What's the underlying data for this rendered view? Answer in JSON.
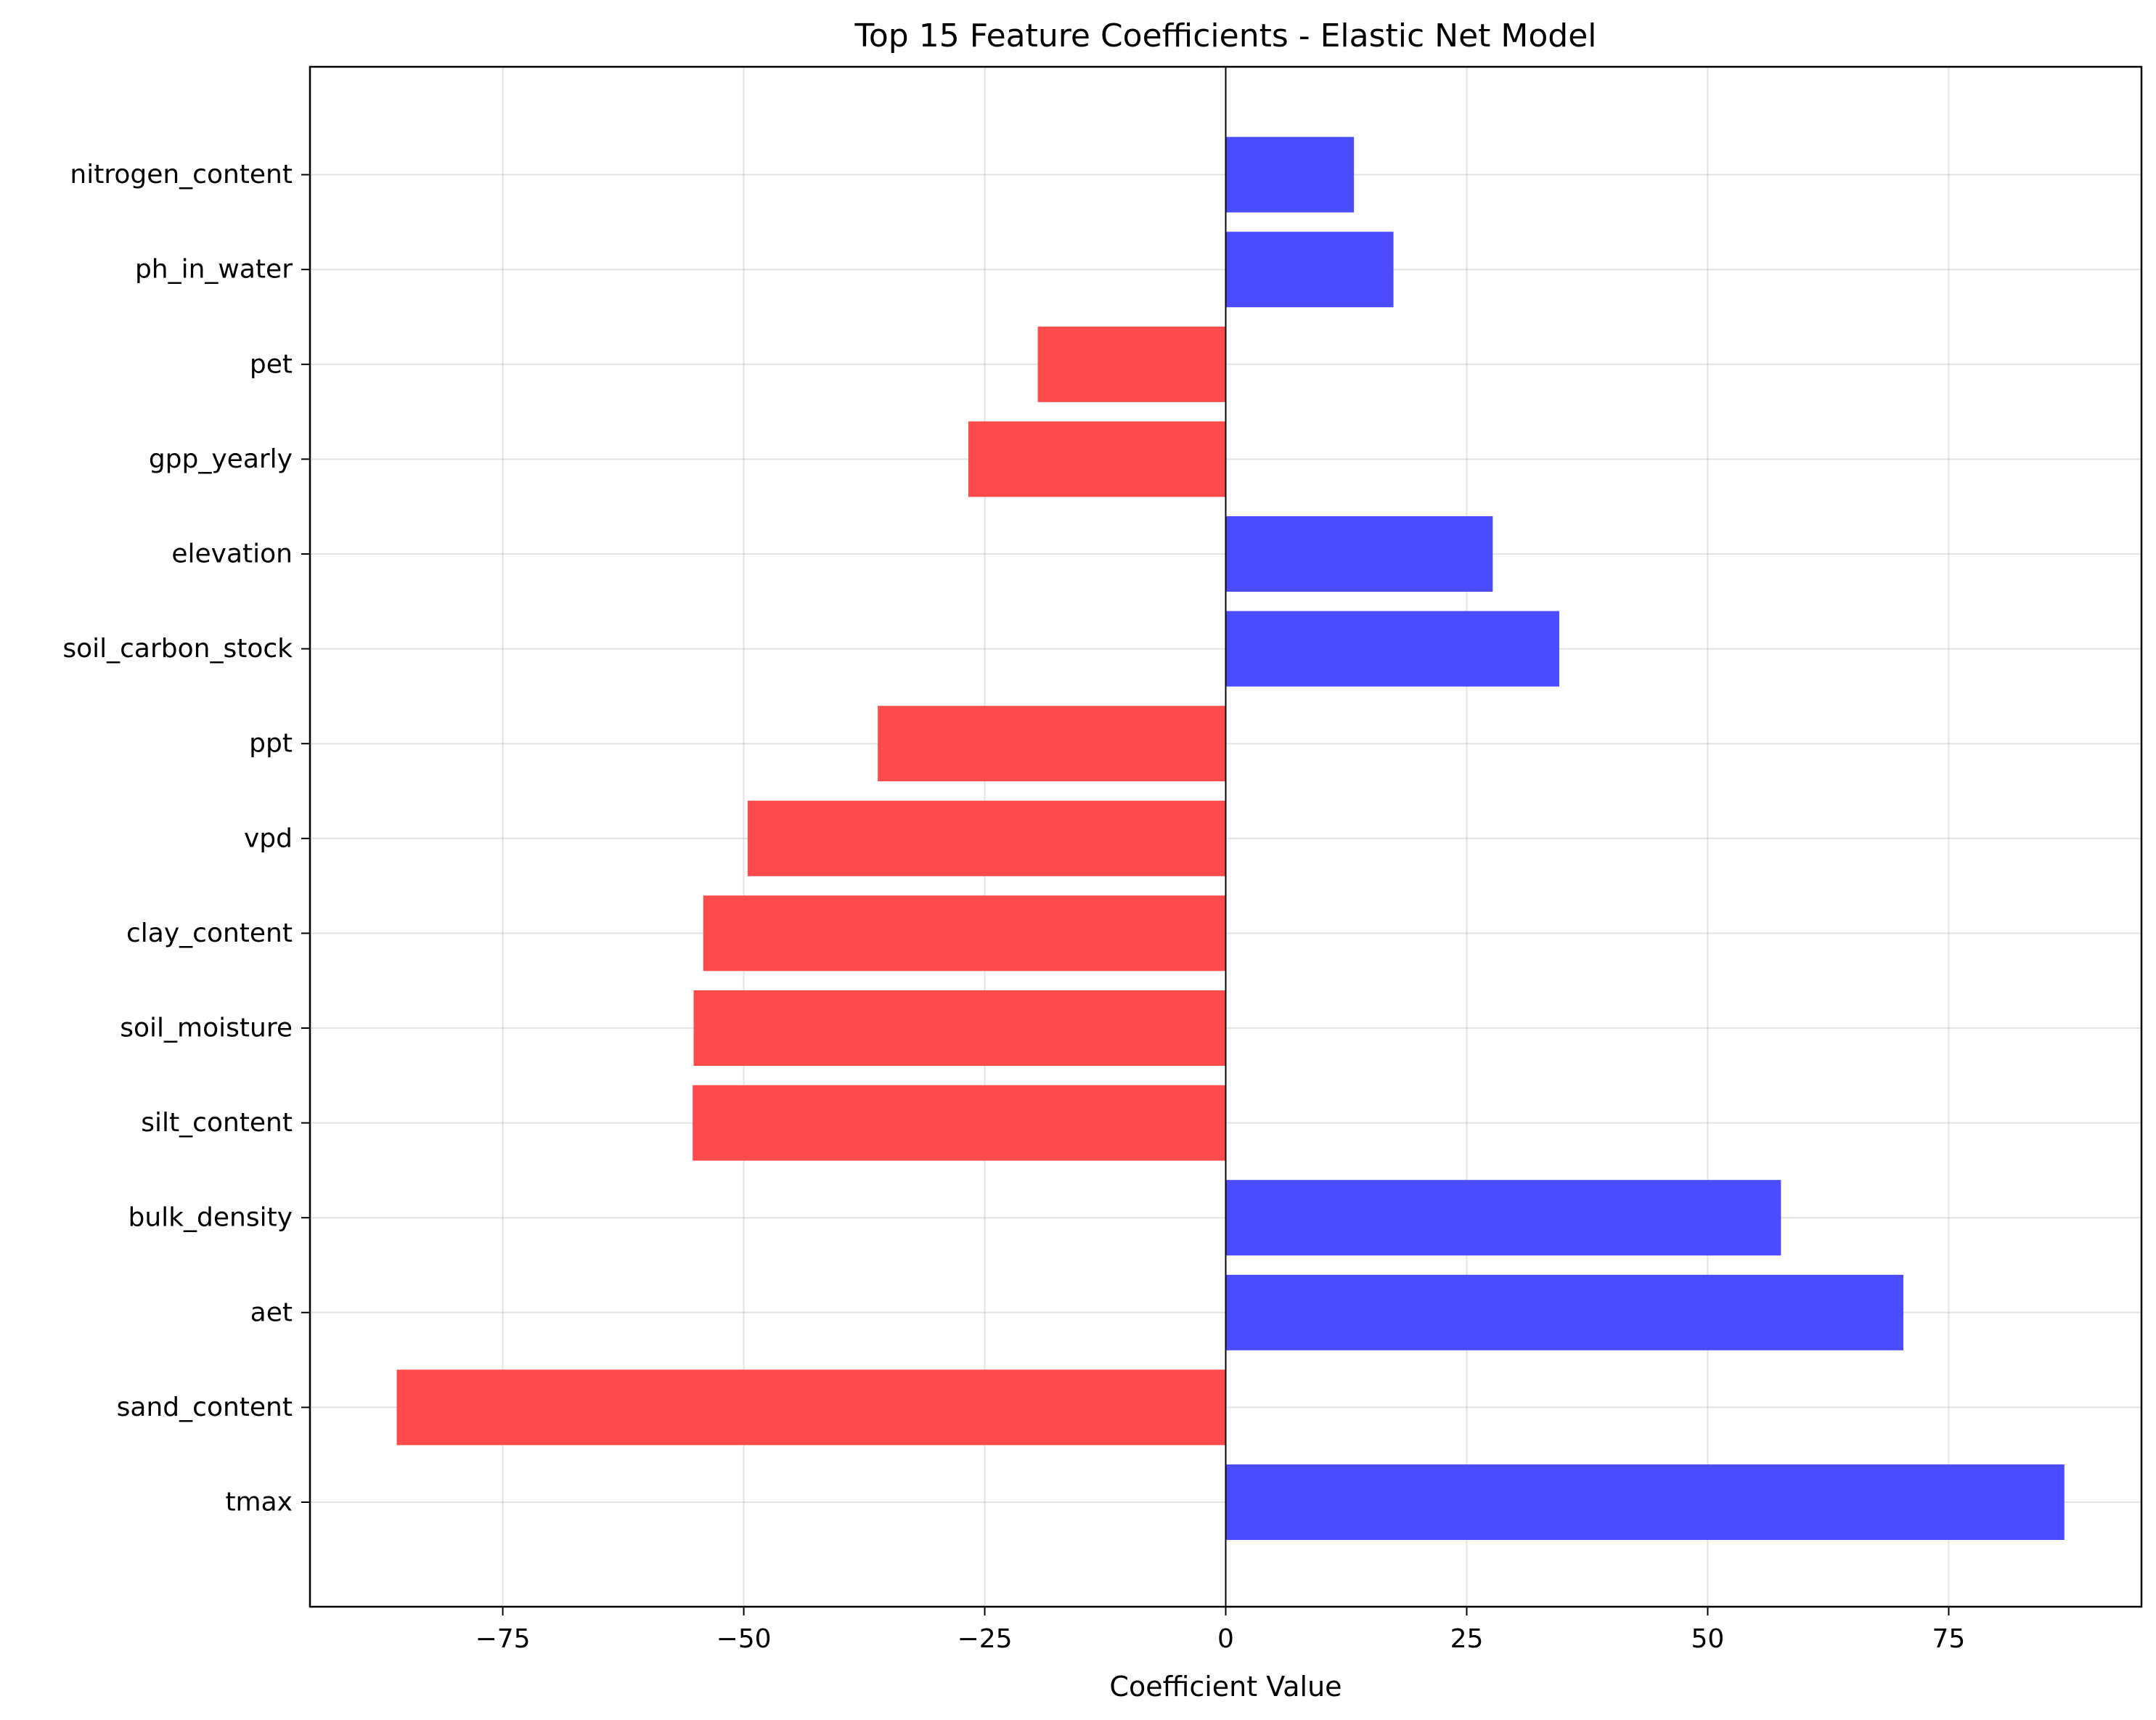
{
  "chart_data": {
    "type": "bar",
    "orientation": "horizontal",
    "title": "Top 15 Feature Coefficients - Elastic Net Model",
    "xlabel": "Coefficient Value",
    "ylabel": "",
    "xlim": [
      -95,
      95
    ],
    "x_ticks": [
      -75,
      -50,
      -25,
      0,
      25,
      50,
      75
    ],
    "x_tick_labels": [
      "−75",
      "−50",
      "−25",
      "0",
      "25",
      "50",
      "75"
    ],
    "grid": true,
    "zero_line": true,
    "colors": {
      "positive": "#4b4bff",
      "negative": "#ff4b4b"
    },
    "categories": [
      "tmax",
      "sand_content",
      "aet",
      "bulk_density",
      "silt_content",
      "soil_moisture",
      "clay_content",
      "vpd",
      "ppt",
      "soil_carbon_stock",
      "elevation",
      "gpp_yearly",
      "pet",
      "ph_in_water",
      "nitrogen_content"
    ],
    "values": [
      87,
      -86,
      70.3,
      57.6,
      -55.3,
      -55.2,
      -54.2,
      -49.6,
      -36.1,
      34.6,
      27.7,
      -26.7,
      -19.5,
      17.4,
      13.3
    ]
  }
}
